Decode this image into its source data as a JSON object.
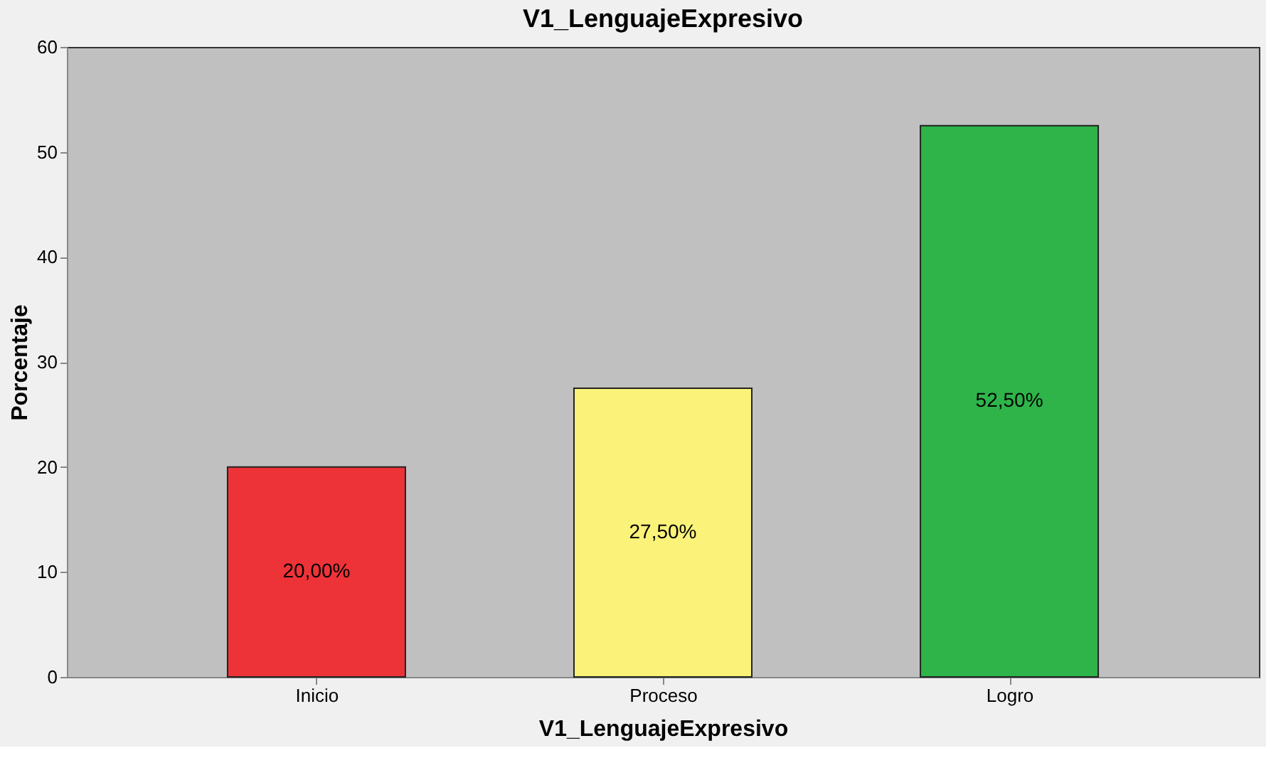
{
  "chart_data": {
    "type": "bar",
    "title": "V1_LenguajeExpresivo",
    "xlabel": "V1_LenguajeExpresivo",
    "ylabel": "Porcentaje",
    "categories": [
      "Inicio",
      "Proceso",
      "Logro"
    ],
    "values": [
      20.0,
      27.5,
      52.5
    ],
    "colors": [
      "#ee3338",
      "#fbf279",
      "#2fb44a"
    ],
    "value_labels": [
      "20,00%",
      "27,50%",
      "52,50%"
    ],
    "ylim": [
      0,
      60
    ],
    "yticks": [
      0,
      10,
      20,
      30,
      40,
      50,
      60
    ],
    "grid": false
  }
}
